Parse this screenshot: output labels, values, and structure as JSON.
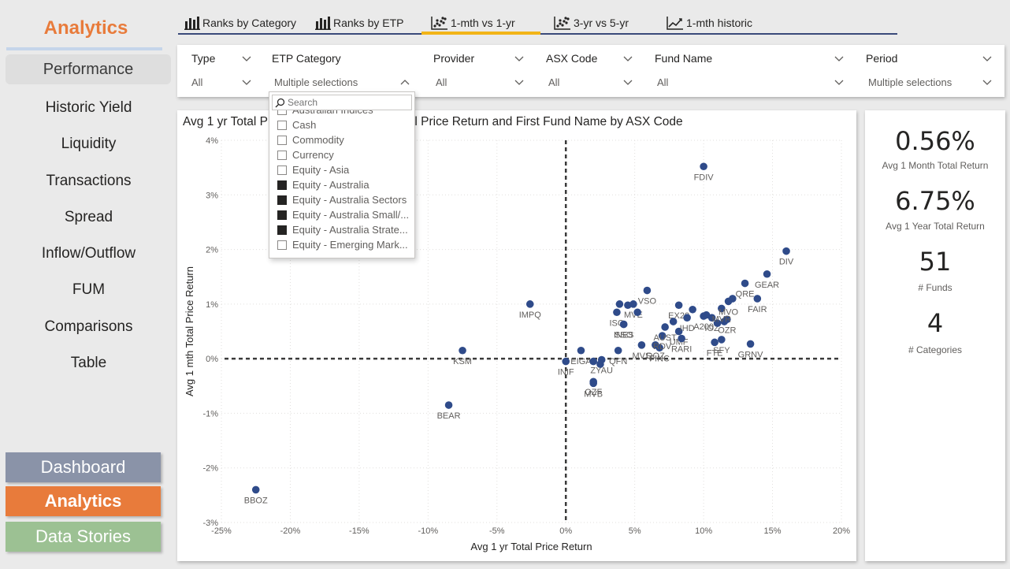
{
  "sidebar": {
    "app_title": "Analytics",
    "items": [
      {
        "label": "Performance"
      },
      {
        "label": "Historic Yield"
      },
      {
        "label": "Liquidity"
      },
      {
        "label": "Transactions"
      },
      {
        "label": "Spread"
      },
      {
        "label": "Inflow/Outflow"
      },
      {
        "label": "FUM"
      },
      {
        "label": "Comparisons"
      },
      {
        "label": "Table"
      }
    ],
    "active_item": "Performance",
    "bottom_buttons": {
      "dashboard": "Dashboard",
      "analytics": "Analytics",
      "data_stories": "Data Stories"
    }
  },
  "tabs": [
    {
      "label": "Ranks by Category",
      "icon": "bar-chart-icon"
    },
    {
      "label": "Ranks by ETP",
      "icon": "bar-chart-icon"
    },
    {
      "label": "1-mth vs 1-yr",
      "icon": "scatter-icon",
      "active": true
    },
    {
      "label": "3-yr vs 5-yr",
      "icon": "scatter-icon"
    },
    {
      "label": "1-mth historic",
      "icon": "line-chart-icon"
    }
  ],
  "filters": {
    "type": {
      "label": "Type",
      "value": "All"
    },
    "etp_category": {
      "label": "ETP Category",
      "value": "Multiple selections"
    },
    "provider": {
      "label": "Provider",
      "value": "All"
    },
    "asx_code": {
      "label": "ASX Code",
      "value": "All"
    },
    "fund_name": {
      "label": "Fund Name",
      "value": "All"
    },
    "period": {
      "label": "Period",
      "value": "Multiple selections"
    }
  },
  "dropdown": {
    "search_placeholder": "Search",
    "items": [
      {
        "label": "Australian Indices",
        "checked": false
      },
      {
        "label": "Cash",
        "checked": false
      },
      {
        "label": "Commodity",
        "checked": false
      },
      {
        "label": "Currency",
        "checked": false
      },
      {
        "label": "Equity - Asia",
        "checked": false
      },
      {
        "label": "Equity - Australia",
        "checked": true
      },
      {
        "label": "Equity - Australia Sectors",
        "checked": true
      },
      {
        "label": "Equity - Australia Small/...",
        "checked": true
      },
      {
        "label": "Equity - Australia Strate...",
        "checked": true
      },
      {
        "label": "Equity - Emerging Mark...",
        "checked": false
      }
    ]
  },
  "kpis": [
    {
      "value": "0.56%",
      "label": "Avg 1 Month Total Return"
    },
    {
      "value": "6.75%",
      "label": "Avg 1 Year Total Return"
    },
    {
      "value": "51",
      "label": "# Funds"
    },
    {
      "value": "4",
      "label": "# Categories"
    }
  ],
  "chart_title": "Avg 1 yr Total Price Return, Avg 1 mth Total Price Return and First Fund Name by ASX Code",
  "chart_data": {
    "type": "scatter",
    "title": "Avg 1 yr Total Price Return, Avg 1 mth Total Price Return and First Fund Name by ASX Code",
    "xlabel": "Avg 1 yr Total Price Return",
    "ylabel": "Avg 1 mth Total Price Return",
    "xlim": [
      -25,
      20
    ],
    "ylim": [
      -3,
      4
    ],
    "x_ticks": [
      "-25%",
      "-20%",
      "-15%",
      "-10%",
      "-5%",
      "0%",
      "5%",
      "10%",
      "15%",
      "20%"
    ],
    "y_ticks": [
      "-3%",
      "-2%",
      "-1%",
      "0%",
      "1%",
      "2%",
      "3%",
      "4%"
    ],
    "grid": true,
    "reference_lines": {
      "x": 0,
      "y": 0
    },
    "point_color": "#2f4b8a",
    "points": [
      {
        "label": "BBOZ",
        "x": -22.5,
        "y": -2.4
      },
      {
        "label": "BEAR",
        "x": -8.5,
        "y": -0.85
      },
      {
        "label": "KSM",
        "x": -7.5,
        "y": 0.15
      },
      {
        "label": "IMPQ",
        "x": -2.6,
        "y": 1.0
      },
      {
        "label": "INIF",
        "x": 0.0,
        "y": -0.05
      },
      {
        "label": "EIGA",
        "x": 1.1,
        "y": 0.15
      },
      {
        "label": "",
        "x": 2.0,
        "y": -0.05
      },
      {
        "label": "QFN",
        "x": 3.8,
        "y": 0.15
      },
      {
        "label": "ZYAU",
        "x": 2.6,
        "y": -0.02
      },
      {
        "label": "",
        "x": 2.5,
        "y": -0.1
      },
      {
        "label": "OZF",
        "x": 2.0,
        "y": -0.42
      },
      {
        "label": "MVB",
        "x": 2.0,
        "y": -0.45
      },
      {
        "label": "ISO",
        "x": 3.7,
        "y": 0.85
      },
      {
        "label": "",
        "x": 3.9,
        "y": 1.0
      },
      {
        "label": "",
        "x": 4.5,
        "y": 0.98
      },
      {
        "label": "MVE",
        "x": 4.9,
        "y": 1.0
      },
      {
        "label": "VSO",
        "x": 5.9,
        "y": 1.25
      },
      {
        "label": "",
        "x": 5.2,
        "y": 0.85
      },
      {
        "label": "SSO",
        "x": 4.2,
        "y": 0.63
      },
      {
        "label": "INES",
        "x": 4.2,
        "y": 0.63
      },
      {
        "label": "MVS",
        "x": 5.5,
        "y": 0.25
      },
      {
        "label": "QOZ",
        "x": 6.5,
        "y": 0.25
      },
      {
        "label": "FINC",
        "x": 6.8,
        "y": 0.2
      },
      {
        "label": "RDV",
        "x": 7.0,
        "y": 0.42
      },
      {
        "label": "AUST",
        "x": 7.2,
        "y": 0.58
      },
      {
        "label": "EX20",
        "x": 8.2,
        "y": 0.98
      },
      {
        "label": "",
        "x": 7.8,
        "y": 0.68
      },
      {
        "label": "UMF",
        "x": 8.2,
        "y": 0.5
      },
      {
        "label": "IHD",
        "x": 8.8,
        "y": 0.75
      },
      {
        "label": "RARI",
        "x": 8.4,
        "y": 0.37
      },
      {
        "label": "",
        "x": 9.2,
        "y": 0.9
      },
      {
        "label": "A200",
        "x": 10.0,
        "y": 0.78
      },
      {
        "label": "",
        "x": 10.2,
        "y": 0.8
      },
      {
        "label": "IOZ",
        "x": 10.6,
        "y": 0.75
      },
      {
        "label": "FTE",
        "x": 10.8,
        "y": 0.3
      },
      {
        "label": "SFY",
        "x": 11.3,
        "y": 0.35
      },
      {
        "label": "",
        "x": 11.0,
        "y": 0.65
      },
      {
        "label": "",
        "x": 11.5,
        "y": 0.68
      },
      {
        "label": "OZR",
        "x": 11.7,
        "y": 0.72
      },
      {
        "label": "MVR",
        "x": 11.3,
        "y": 0.92
      },
      {
        "label": "MVO",
        "x": 11.8,
        "y": 1.05
      },
      {
        "label": "",
        "x": 12.1,
        "y": 1.1
      },
      {
        "label": "QRE",
        "x": 13.0,
        "y": 1.38
      },
      {
        "label": "FAIR",
        "x": 13.9,
        "y": 1.1
      },
      {
        "label": "GRNV",
        "x": 13.4,
        "y": 0.27
      },
      {
        "label": "GEAR",
        "x": 14.6,
        "y": 1.55
      },
      {
        "label": "DIV",
        "x": 16.0,
        "y": 1.97
      },
      {
        "label": "FDIV",
        "x": 10.0,
        "y": 3.52
      }
    ]
  }
}
